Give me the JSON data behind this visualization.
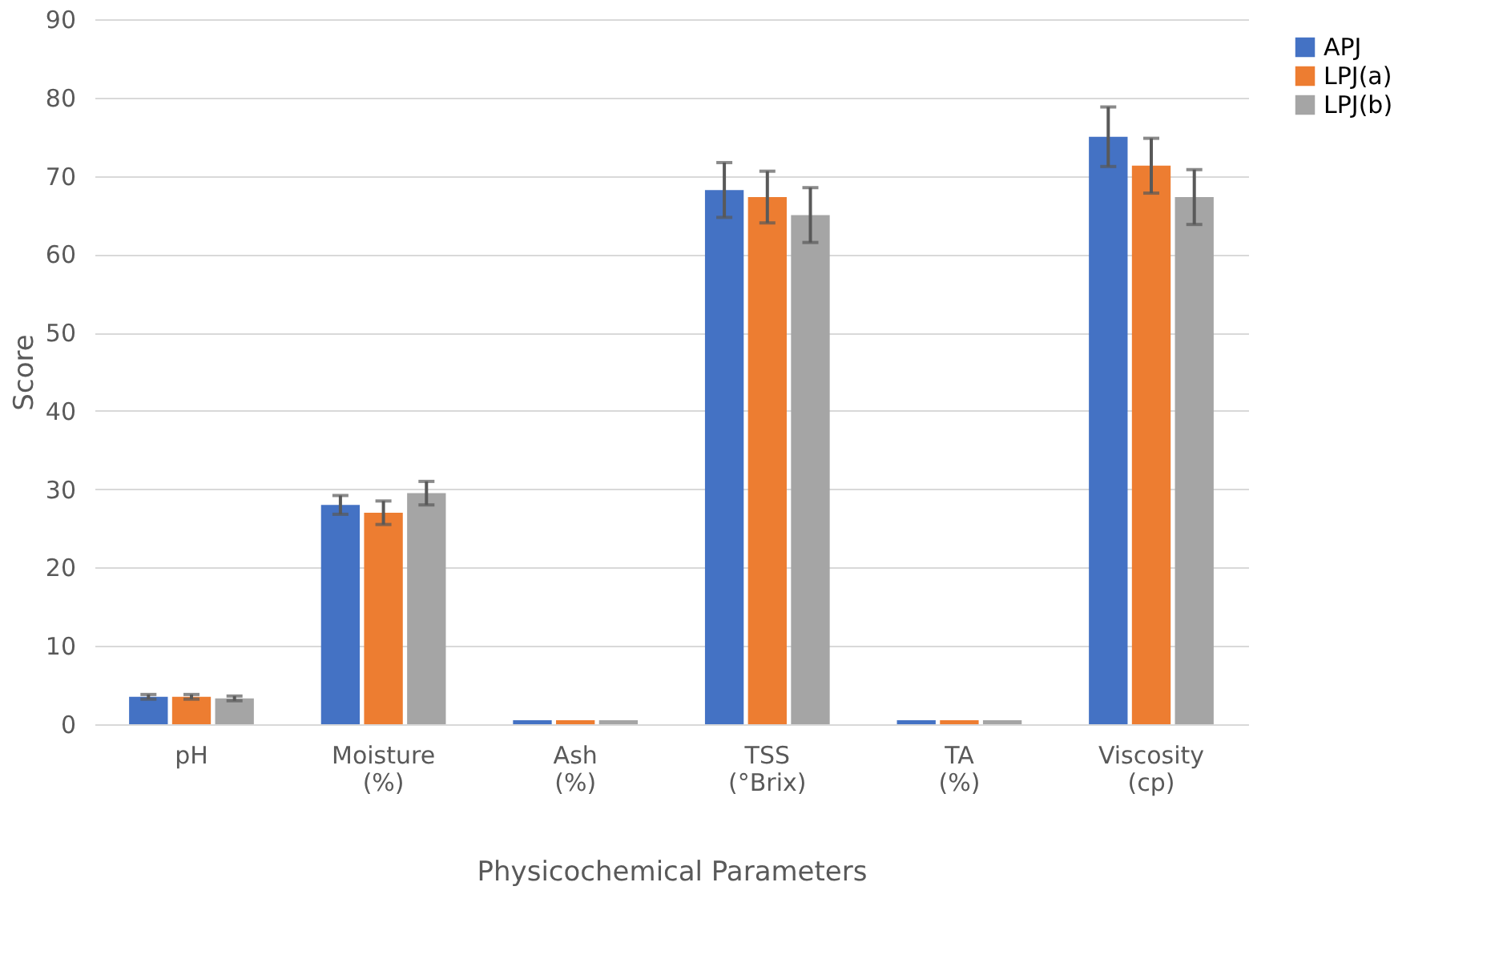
{
  "chart_data": {
    "type": "bar",
    "xlabel": "Physicochemical Parameters",
    "ylabel": "Score",
    "categories": [
      "pH",
      "Moisture\n(%)",
      "Ash\n(%)",
      "TSS\n(°Brix)",
      "TA\n(%)",
      "Viscosity\n(cp)"
    ],
    "series": [
      {
        "name": "APJ",
        "color": "#4472c4",
        "values": [
          3.5,
          28,
          0.5,
          68.2,
          0.5,
          75
        ],
        "errors": [
          0.3,
          1.2,
          null,
          3.5,
          null,
          3.8
        ]
      },
      {
        "name": "LPJ(a)",
        "color": "#ed7d31",
        "values": [
          3.5,
          27,
          0.5,
          67.3,
          0.5,
          71.3
        ],
        "errors": [
          0.3,
          1.5,
          null,
          3.3,
          null,
          3.5
        ]
      },
      {
        "name": "LPJ(b)",
        "color": "#a5a5a5",
        "values": [
          3.3,
          29.5,
          0.5,
          65,
          0.5,
          67.3
        ],
        "errors": [
          0.3,
          1.5,
          null,
          3.5,
          null,
          3.5
        ]
      }
    ],
    "ylim": [
      0,
      90
    ],
    "yticks": [
      0,
      10,
      20,
      30,
      40,
      50,
      60,
      70,
      80,
      90
    ],
    "grid": "y",
    "legend": "right"
  }
}
